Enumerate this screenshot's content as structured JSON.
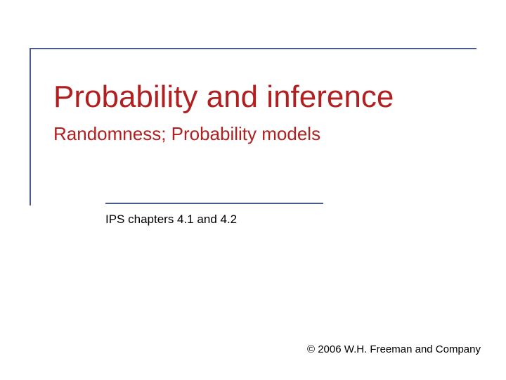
{
  "slide": {
    "title": "Probability and inference",
    "subtitle": "Randomness; Probability models",
    "chapters": "IPS chapters 4.1 and 4.2",
    "copyright": "© 2006 W.H. Freeman and Company"
  },
  "styling": {
    "background_color": "#ffffff",
    "accent_color": "#4a5a8a",
    "title_color": "#b02020",
    "subtitle_color": "#b02020",
    "text_color": "#000000",
    "title_fontsize": 44,
    "subtitle_fontsize": 26,
    "chapters_fontsize": 17,
    "copyright_fontsize": 15,
    "frame_border_width": 2,
    "divider_width": 310
  }
}
